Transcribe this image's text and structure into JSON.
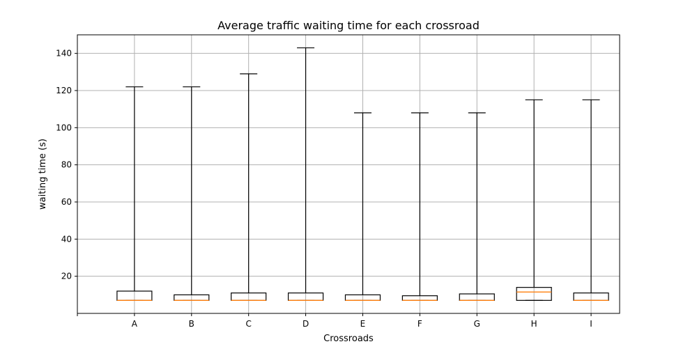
{
  "chart_data": {
    "type": "boxplot",
    "title": "Average traffic waiting time for each crossroad",
    "xlabel": "Crossroads",
    "ylabel": "waiting time (s)",
    "ylim": [
      0,
      150
    ],
    "yticks": [
      20,
      40,
      60,
      80,
      100,
      120,
      140
    ],
    "grid": true,
    "categories": [
      "A",
      "B",
      "C",
      "D",
      "E",
      "F",
      "G",
      "H",
      "I"
    ],
    "series": [
      {
        "stats": [
          {
            "min": 7,
            "q1": 7,
            "median": 7,
            "q3": 12,
            "max": 122
          },
          {
            "min": 7,
            "q1": 7,
            "median": 7,
            "q3": 10,
            "max": 122
          },
          {
            "min": 7,
            "q1": 7,
            "median": 7,
            "q3": 11,
            "max": 129
          },
          {
            "min": 7,
            "q1": 7,
            "median": 7,
            "q3": 11,
            "max": 143
          },
          {
            "min": 7,
            "q1": 7,
            "median": 7,
            "q3": 10,
            "max": 108
          },
          {
            "min": 7,
            "q1": 7,
            "median": 7,
            "q3": 9.5,
            "max": 108
          },
          {
            "min": 7,
            "q1": 7,
            "median": 7,
            "q3": 10.5,
            "max": 108
          },
          {
            "min": 7,
            "q1": 7,
            "median": 11.5,
            "q3": 14,
            "max": 115
          },
          {
            "min": 7,
            "q1": 7,
            "median": 7,
            "q3": 11,
            "max": 115
          }
        ]
      }
    ],
    "colors": {
      "box": "#000000",
      "median": "#ff7f0e",
      "grid": "#b0b0b0"
    }
  }
}
